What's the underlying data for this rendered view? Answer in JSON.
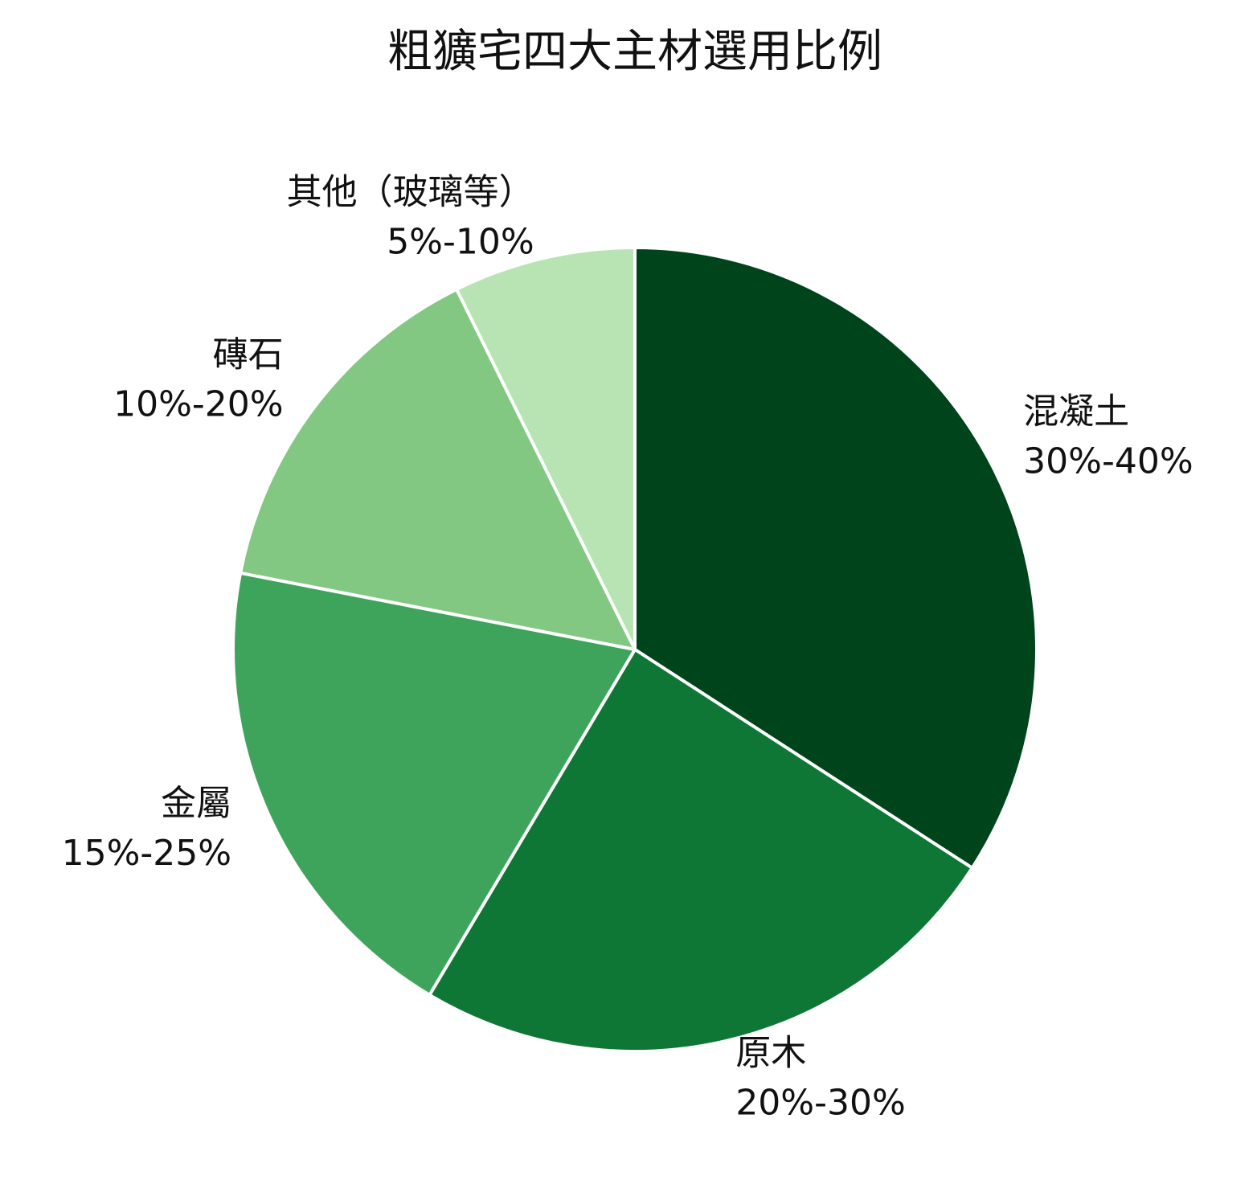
{
  "chart_data": {
    "type": "pie",
    "title": "粗獷宅四大主材選用比例",
    "categories": [
      "混凝土",
      "原木",
      "金屬",
      "磚石",
      "其他（玻璃等）"
    ],
    "values": [
      35,
      25,
      20,
      15,
      7.5
    ],
    "value_labels": [
      "30%-40%",
      "20%-30%",
      "15%-25%",
      "10%-20%",
      "5%-10%"
    ],
    "colors": [
      "#00441b",
      "#0f7735",
      "#3fa45b",
      "#83c882",
      "#b8e3b3"
    ]
  }
}
